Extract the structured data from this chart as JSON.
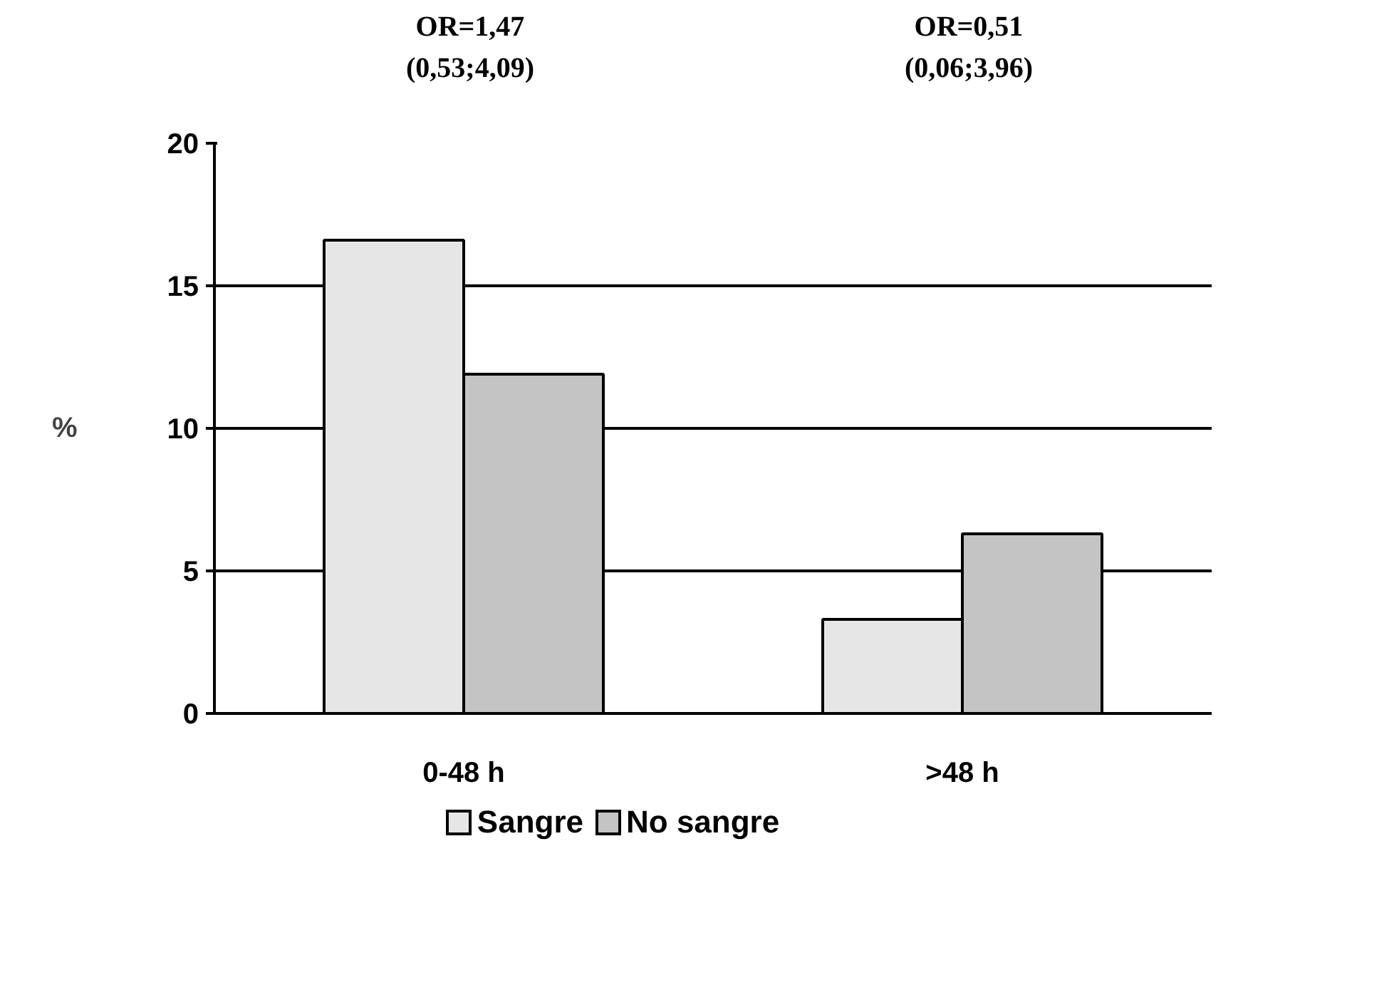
{
  "chart_data": {
    "type": "bar",
    "categories": [
      "0-48 h",
      ">48 h"
    ],
    "series": [
      {
        "name": "Sangre",
        "color": "#e6e6e6",
        "values": [
          16.6,
          3.3
        ]
      },
      {
        "name": "No sangre",
        "color": "#c4c4c4",
        "values": [
          11.9,
          6.3
        ]
      }
    ],
    "ylabel": "%",
    "ylim": [
      0,
      20
    ],
    "yticks": [
      0,
      5,
      10,
      15,
      20
    ],
    "grid": "y",
    "legend": "bottom",
    "annotations": [
      "OR=1,47\n(0,53;4,09)",
      "OR=0,51\n(0,06;3,96)"
    ]
  }
}
